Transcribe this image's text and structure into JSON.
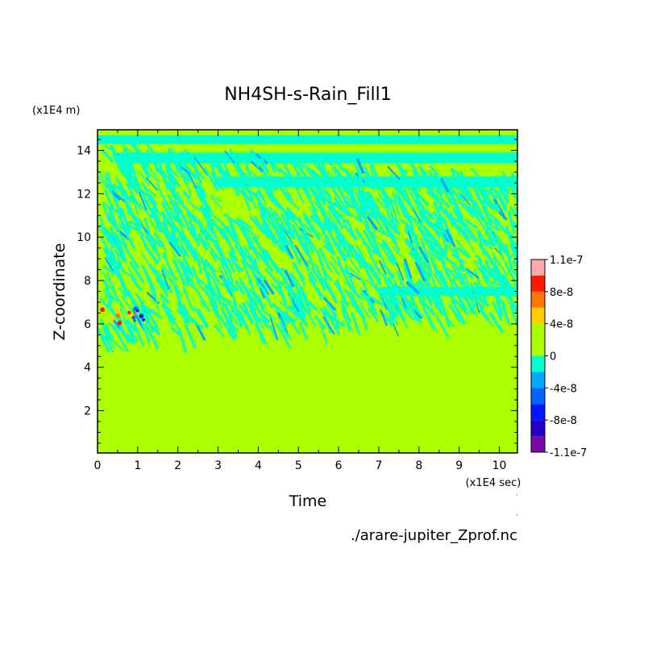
{
  "chart_data": {
    "type": "heatmap",
    "title": "NH4SH-s-Rain_Fill1",
    "xlabel": "Time",
    "ylabel": "Z-coordinate",
    "x_unit_label": "(x1E4 sec)",
    "y_unit_label": "(x1E4 m)",
    "source_label": "./arare-jupiter_Zprof.nc",
    "xlim": [
      0,
      10.45
    ],
    "ylim": [
      0.05,
      14.95
    ],
    "x_ticks": [
      "0",
      "1",
      "2",
      "3",
      "4",
      "5",
      "6",
      "7",
      "8",
      "9",
      "10"
    ],
    "y_ticks": [
      "2",
      "4",
      "6",
      "8",
      "10",
      "12",
      "14"
    ],
    "colorbar": {
      "labels": [
        "1.1e-7",
        "8e-8",
        "4e-8",
        "0",
        "-4e-8",
        "-8e-8",
        "-1.1e-7"
      ],
      "levels": [
        {
          "range": "-1.1e-7 to -1e-7",
          "color": "#7a0aa8"
        },
        {
          "range": "-1e-7 to -8e-8",
          "color": "#2200c8"
        },
        {
          "range": "-8e-8 to -6e-8",
          "color": "#0018ff"
        },
        {
          "range": "-6e-8 to -4e-8",
          "color": "#0066ff"
        },
        {
          "range": "-4e-8 to -2e-8",
          "color": "#00a8ff"
        },
        {
          "range": "-2e-8 to 0",
          "color": "#00ffcc"
        },
        {
          "range": "0 to 2e-8",
          "color": "#aaff00"
        },
        {
          "range": "2e-8 to 4e-8",
          "color": "#aaff00"
        },
        {
          "range": "4e-8 to 6e-8",
          "color": "#ffcc00"
        },
        {
          "range": "6e-8 to 8e-8",
          "color": "#ff7700"
        },
        {
          "range": "8e-8 to 1e-7",
          "color": "#ff1a00"
        },
        {
          "range": "1e-7 to 1.1e-7",
          "color": "#ffaaaa"
        }
      ]
    },
    "field_summary": {
      "background_value": "0 to 2e-8",
      "negative_streak_region_z": [
        5.0,
        14.6
      ],
      "negative_bands": [
        {
          "t": [
            0,
            10.45
          ],
          "z": [
            14.3,
            14.7
          ]
        },
        {
          "t": [
            0.5,
            10.45
          ],
          "z": [
            13.4,
            13.9
          ]
        },
        {
          "t": [
            3.0,
            10.45
          ],
          "z": [
            12.3,
            12.8
          ]
        },
        {
          "t": [
            7.0,
            10.45
          ],
          "z": [
            7.3,
            7.7
          ]
        }
      ],
      "mixed_positive_negative_region": {
        "t": [
          0.1,
          1.5
        ],
        "z": [
          6.0,
          6.8
        ]
      }
    }
  },
  "colors": {
    "background_field": "#aaff00",
    "negative_small": "#00ffcc",
    "negative_medium": "#00a8ff"
  }
}
